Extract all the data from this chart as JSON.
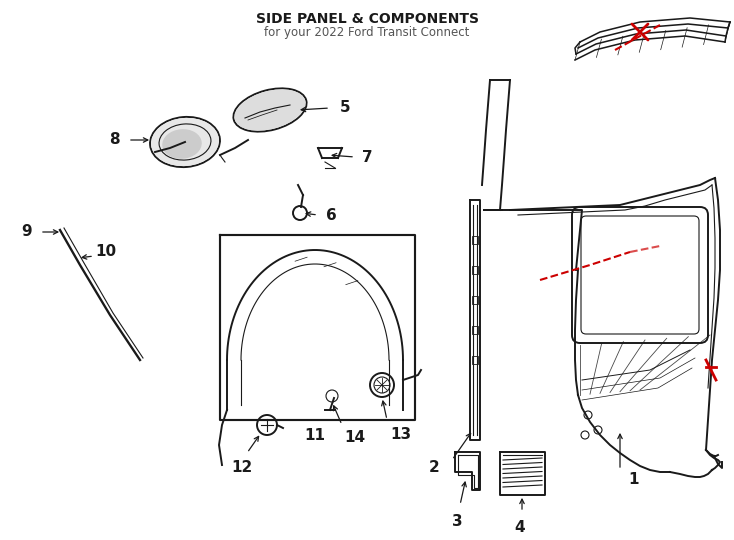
{
  "title": "SIDE PANEL & COMPONENTS",
  "subtitle": "for your 2022 Ford Transit Connect",
  "bg_color": "#ffffff",
  "line_color": "#1a1a1a",
  "red_color": "#cc0000",
  "lw_main": 1.4,
  "lw_thin": 0.8,
  "fs_label": 11,
  "fs_title": 10,
  "fs_sub": 8.5
}
